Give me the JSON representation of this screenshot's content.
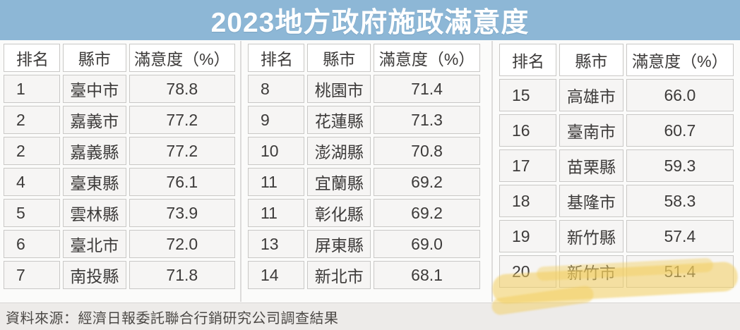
{
  "title": "2023地方政府施政滿意度",
  "headers": [
    "排名",
    "縣市",
    "滿意度（%）"
  ],
  "source": "資料來源：經濟日報委託聯合行銷研究公司調查結果",
  "colors": {
    "title_bg": "#8db7d6",
    "title_text": "#ffffff",
    "cell_bg": "#f6f5f4",
    "header_bg": "#ffffff",
    "cell_border": "#c9c8c6",
    "source_bg": "#edebe9",
    "highlight": "#f3cd5c"
  },
  "tables": [
    {
      "rows": [
        {
          "rank": "1",
          "city": "臺中市",
          "value": "78.8"
        },
        {
          "rank": "2",
          "city": "嘉義市",
          "value": "77.2"
        },
        {
          "rank": "2",
          "city": "嘉義縣",
          "value": "77.2"
        },
        {
          "rank": "4",
          "city": "臺東縣",
          "value": "76.1"
        },
        {
          "rank": "5",
          "city": "雲林縣",
          "value": "73.9"
        },
        {
          "rank": "6",
          "city": "臺北市",
          "value": "72.0"
        },
        {
          "rank": "7",
          "city": "南投縣",
          "value": "71.8"
        }
      ]
    },
    {
      "rows": [
        {
          "rank": "8",
          "city": "桃園市",
          "value": "71.4"
        },
        {
          "rank": "9",
          "city": "花蓮縣",
          "value": "71.3"
        },
        {
          "rank": "10",
          "city": "澎湖縣",
          "value": "70.8"
        },
        {
          "rank": "11",
          "city": "宜蘭縣",
          "value": "69.2"
        },
        {
          "rank": "11",
          "city": "彰化縣",
          "value": "69.2"
        },
        {
          "rank": "13",
          "city": "屏東縣",
          "value": "69.0"
        },
        {
          "rank": "14",
          "city": "新北市",
          "value": "68.1"
        }
      ]
    },
    {
      "rows": [
        {
          "rank": "15",
          "city": "高雄市",
          "value": "66.0"
        },
        {
          "rank": "16",
          "city": "臺南市",
          "value": "60.7"
        },
        {
          "rank": "17",
          "city": "苗栗縣",
          "value": "59.3"
        },
        {
          "rank": "18",
          "city": "基隆市",
          "value": "58.3"
        },
        {
          "rank": "19",
          "city": "新竹縣",
          "value": "57.4"
        },
        {
          "rank": "20",
          "city": "新竹市",
          "value": "51.4",
          "highlighted": true
        }
      ]
    }
  ],
  "chart_data": {
    "type": "table",
    "title": "2023地方政府施政滿意度",
    "columns": [
      "排名",
      "縣市",
      "滿意度（%）"
    ],
    "rows": [
      [
        1,
        "臺中市",
        78.8
      ],
      [
        2,
        "嘉義市",
        77.2
      ],
      [
        2,
        "嘉義縣",
        77.2
      ],
      [
        4,
        "臺東縣",
        76.1
      ],
      [
        5,
        "雲林縣",
        73.9
      ],
      [
        6,
        "臺北市",
        72.0
      ],
      [
        7,
        "南投縣",
        71.8
      ],
      [
        8,
        "桃園市",
        71.4
      ],
      [
        9,
        "花蓮縣",
        71.3
      ],
      [
        10,
        "澎湖縣",
        70.8
      ],
      [
        11,
        "宜蘭縣",
        69.2
      ],
      [
        11,
        "彰化縣",
        69.2
      ],
      [
        13,
        "屏東縣",
        69.0
      ],
      [
        14,
        "新北市",
        68.1
      ],
      [
        15,
        "高雄市",
        66.0
      ],
      [
        16,
        "臺南市",
        60.7
      ],
      [
        17,
        "苗栗縣",
        59.3
      ],
      [
        18,
        "基隆市",
        58.3
      ],
      [
        19,
        "新竹縣",
        57.4
      ],
      [
        20,
        "新竹市",
        51.4
      ]
    ],
    "highlighted_row": [
      20,
      "新竹市",
      51.4
    ],
    "value_range": [
      51.4,
      78.8
    ],
    "source": "資料來源：經濟日報委託聯合行銷研究公司調查結果"
  }
}
